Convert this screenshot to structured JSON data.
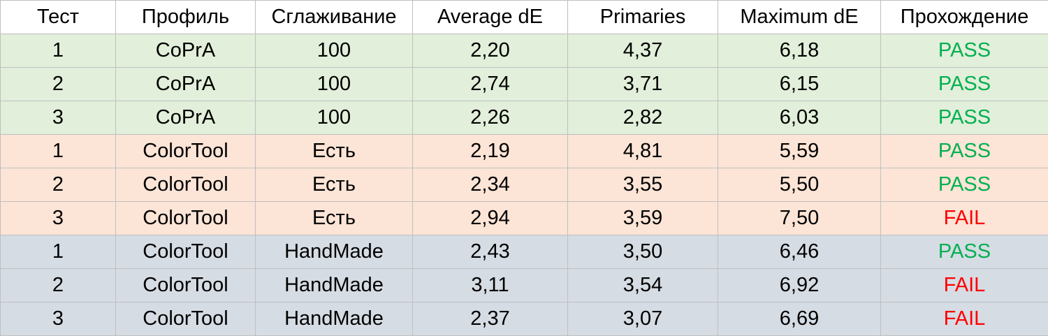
{
  "table": {
    "headers": [
      "Тест",
      "Профиль",
      "Сглаживание",
      "Average dE",
      "Primaries",
      "Maximum dE",
      "Прохождение"
    ],
    "rows": [
      {
        "test": "1",
        "profile": "CoPrA",
        "smoothing": "100",
        "average_de": "2,20",
        "primaries": "4,37",
        "maximum_de": "6,18",
        "result": "PASS"
      },
      {
        "test": "2",
        "profile": "CoPrA",
        "smoothing": "100",
        "average_de": "2,74",
        "primaries": "3,71",
        "maximum_de": "6,15",
        "result": "PASS"
      },
      {
        "test": "3",
        "profile": "CoPrA",
        "smoothing": "100",
        "average_de": "2,26",
        "primaries": "2,82",
        "maximum_de": "6,03",
        "result": "PASS"
      },
      {
        "test": "1",
        "profile": "ColorTool",
        "smoothing": "Есть",
        "average_de": "2,19",
        "primaries": "4,81",
        "maximum_de": "5,59",
        "result": "PASS"
      },
      {
        "test": "2",
        "profile": "ColorTool",
        "smoothing": "Есть",
        "average_de": "2,34",
        "primaries": "3,55",
        "maximum_de": "5,50",
        "result": "PASS"
      },
      {
        "test": "3",
        "profile": "ColorTool",
        "smoothing": "Есть",
        "average_de": "2,94",
        "primaries": "3,59",
        "maximum_de": "7,50",
        "result": "FAIL"
      },
      {
        "test": "1",
        "profile": "ColorTool",
        "smoothing": "HandMade",
        "average_de": "2,43",
        "primaries": "3,50",
        "maximum_de": "6,46",
        "result": "PASS"
      },
      {
        "test": "2",
        "profile": "ColorTool",
        "smoothing": "HandMade",
        "average_de": "3,11",
        "primaries": "3,54",
        "maximum_de": "6,92",
        "result": "FAIL"
      },
      {
        "test": "3",
        "profile": "ColorTool",
        "smoothing": "HandMade",
        "average_de": "2,37",
        "primaries": "3,07",
        "maximum_de": "6,69",
        "result": "FAIL"
      }
    ]
  },
  "colors": {
    "group_copra_bg": "#e2efda",
    "group_colortool_est_bg": "#fce4d6",
    "group_colortool_handmade_bg": "#d6dce4",
    "pass_text": "#00b050",
    "fail_text": "#ff0000",
    "grid_line": "#bfbfbf"
  }
}
